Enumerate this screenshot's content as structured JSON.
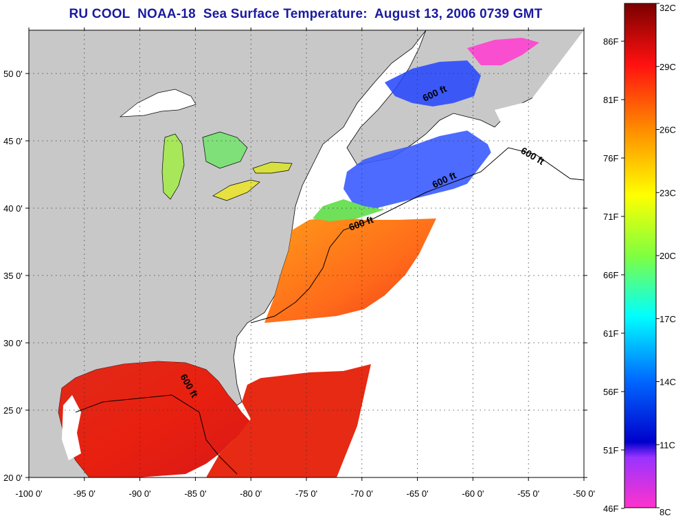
{
  "title": "RU COOL  NOAA-18  Sea Surface Temperature:  August 13, 2006 0739 GMT",
  "map": {
    "lon_range": [
      -100,
      -50
    ],
    "lat_range": [
      20,
      52
    ],
    "x_ticks": [
      "-100 0'",
      "-95 0'",
      "-90 0'",
      "-85 0'",
      "-80 0'",
      "-75 0'",
      "-70 0'",
      "-65 0'",
      "-60 0'",
      "-55 0'",
      "-50 0'"
    ],
    "y_ticks": [
      "20 0'",
      "25 0'",
      "30 0'",
      "35 0'",
      "40 0'",
      "45 0'",
      "50 0'"
    ],
    "grid": "dotted",
    "land_color": "#c8c8c8",
    "cloud_color": "#ffffff",
    "contour_labels": [
      "600 ft",
      "600 ft",
      "600 ft",
      "600 ft",
      "600 ft"
    ]
  },
  "colorbar": {
    "celsius_labels": [
      "32C",
      "29C",
      "26C",
      "23C",
      "20C",
      "17C",
      "14C",
      "11C",
      "8C"
    ],
    "fahrenheit_labels": [
      "86F",
      "81F",
      "76F",
      "71F",
      "66F",
      "61F",
      "56F",
      "51F",
      "46F"
    ],
    "colors": [
      "#7a0000",
      "#ff1010",
      "#ff8c00",
      "#ffff00",
      "#7fff3f",
      "#00ffff",
      "#0066ff",
      "#0000cc",
      "#9933ff",
      "#ff33cc"
    ]
  }
}
